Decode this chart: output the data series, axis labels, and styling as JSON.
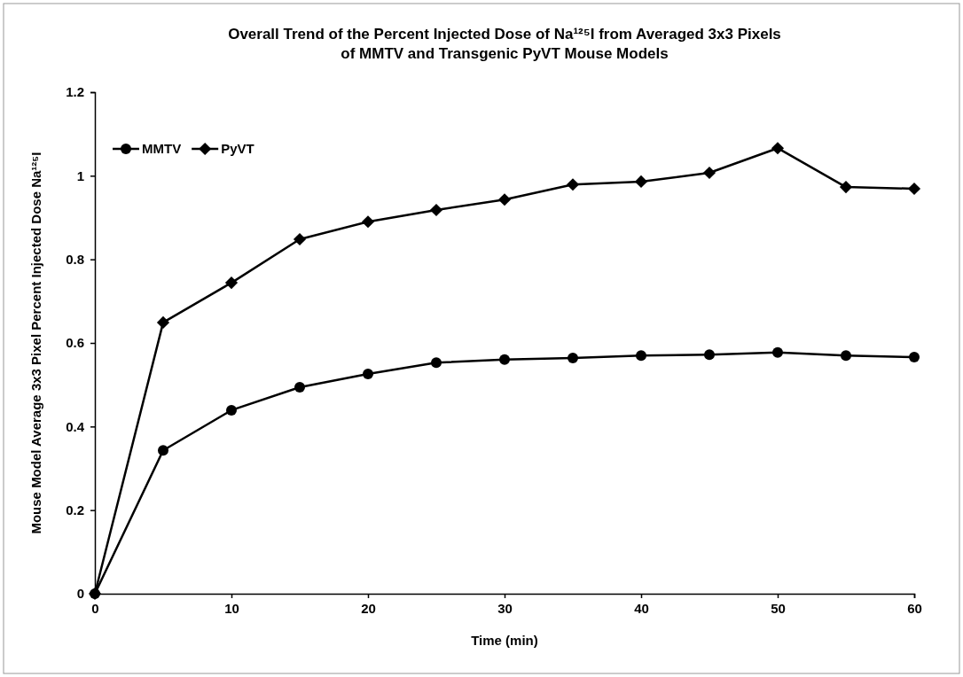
{
  "chart_data": {
    "type": "line",
    "title": "Overall Trend of the Percent Injected Dose of Na¹²⁵I from Averaged 3x3 Pixels\nof MMTV and Transgenic PyVT Mouse Models",
    "xlabel": "Time (min)",
    "ylabel": "Mouse Model Average 3x3 Pixel Percent Injected Dose Na¹²⁵I",
    "x": [
      0,
      5,
      10,
      15,
      20,
      25,
      30,
      35,
      40,
      45,
      50,
      55,
      60
    ],
    "xlim": [
      0,
      60
    ],
    "xticks": [
      0,
      10,
      20,
      30,
      40,
      50,
      60
    ],
    "ylim": [
      0,
      1.2
    ],
    "yticks": [
      0,
      {
        "value": 0.2,
        "label": "0.2"
      },
      {
        "value": 0.4,
        "label": "0.4"
      },
      {
        "value": 0.6,
        "label": "0.6"
      },
      {
        "value": 0.8,
        "label": "0.8"
      },
      1,
      {
        "value": 1.2,
        "label": "1.2"
      }
    ],
    "grid": false,
    "legend": "top left",
    "line_style": "solid",
    "series": [
      {
        "name": "MMTV",
        "color": "#000000",
        "marker": "circle",
        "values": [
          0,
          0.343,
          0.439,
          0.494,
          0.526,
          0.553,
          0.56,
          0.564,
          0.57,
          0.572,
          0.577,
          0.57,
          0.566
        ]
      },
      {
        "name": "PyVT",
        "color": "#000000",
        "marker": "diamond",
        "values": [
          0,
          0.649,
          0.744,
          0.848,
          0.89,
          0.918,
          0.943,
          0.979,
          0.986,
          1.007,
          1.066,
          0.973,
          0.969
        ]
      }
    ]
  }
}
